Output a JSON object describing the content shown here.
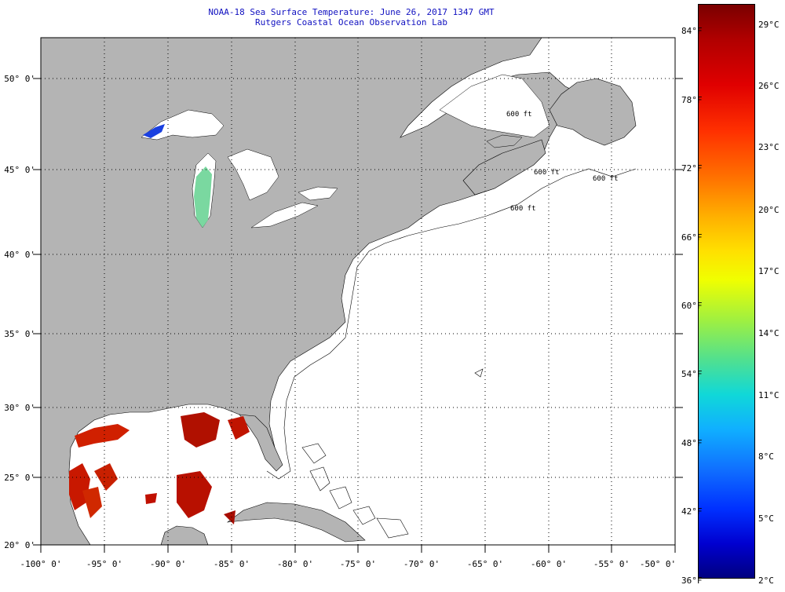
{
  "map": {
    "title_line1": "NOAA-18 Sea Surface Temperature:  June 26, 2017 1347 GMT",
    "title_line2": "Rutgers Coastal Ocean Observation Lab",
    "lon_labels": [
      "-100° 0'",
      "-95° 0'",
      "-90° 0'",
      "-85° 0'",
      "-80° 0'",
      "-75° 0'",
      "-70° 0'",
      "-65° 0'",
      "-60° 0'",
      "-55° 0'",
      "-50° 0'"
    ],
    "lat_labels": [
      "50° 0'",
      "45° 0'",
      "40° 0'",
      "35° 0'",
      "30° 0'",
      "25° 0'",
      "20° 0'"
    ],
    "depth_contour_labels": [
      "600 ft",
      "600 ft",
      "600 ft",
      "600 ft"
    ],
    "extent": {
      "lon": [
        -100,
        -50
      ],
      "lat": [
        20,
        52.5
      ]
    },
    "colors": {
      "land": "#b4b4b4",
      "ocean": "#ffffff",
      "title": "#1010c0",
      "grid": "#000000"
    }
  },
  "colorbar": {
    "fahrenheit_labels": [
      "84°F",
      "78°F",
      "72°F",
      "66°F",
      "60°F",
      "54°F",
      "48°F",
      "42°F",
      "36°F"
    ],
    "celsius_labels": [
      "29°C",
      "26°C",
      "23°C",
      "20°C",
      "17°C",
      "14°C",
      "11°C",
      "8°C",
      "5°C",
      "2°C"
    ]
  }
}
